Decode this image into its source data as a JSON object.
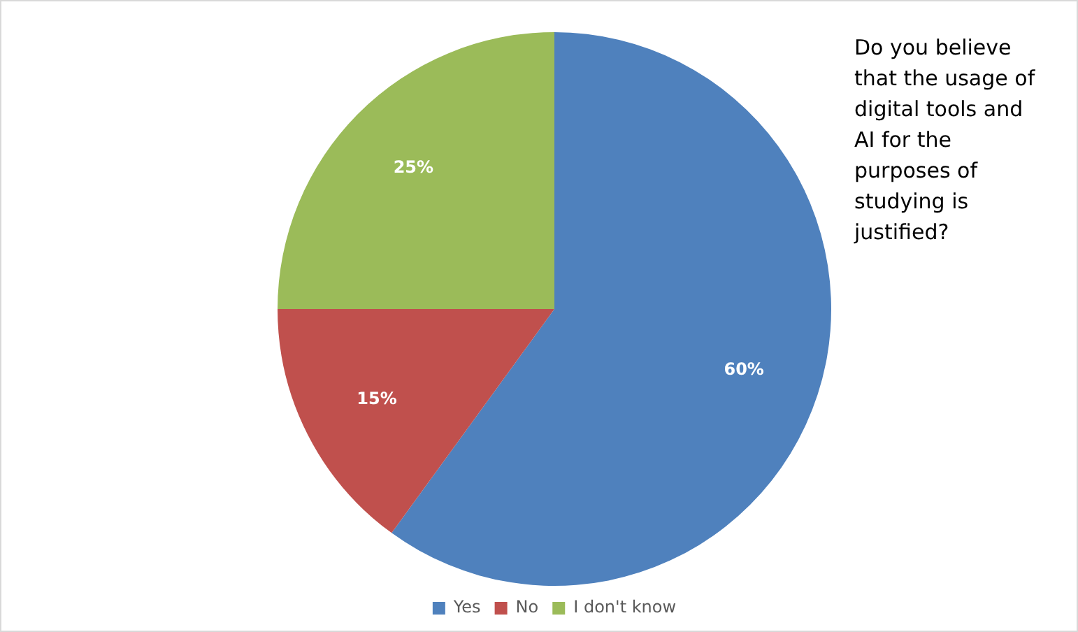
{
  "chart_data": {
    "type": "pie",
    "title": "Do you believe that the usage of digital tools and AI for the purposes of studying is justified?",
    "categories": [
      "Yes",
      "No",
      "I don't know"
    ],
    "values": [
      60,
      15,
      25
    ],
    "value_labels": [
      "60%",
      "15%",
      "25%"
    ],
    "colors": [
      "#4f81bd",
      "#c0504d",
      "#9bbb59"
    ],
    "legend": "bottom"
  }
}
